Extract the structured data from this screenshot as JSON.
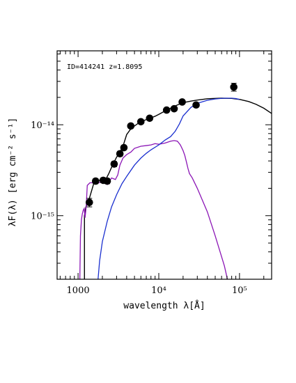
{
  "chart_data": {
    "type": "scatter",
    "annotation": "ID=414241 z=1.8095",
    "xlabel": "wavelength λ[Å]",
    "ylabel": "λF(λ) [erg cm⁻² s⁻¹]",
    "x_scale": "log",
    "y_scale": "log",
    "xlim": [
      550,
      250000
    ],
    "ylim": [
      2e-16,
      6.5e-14
    ],
    "grid": false,
    "x_ticks": [
      {
        "value": 1000,
        "label": "1000"
      },
      {
        "value": 10000,
        "label": "10⁴"
      },
      {
        "value": 100000,
        "label": "10⁵"
      }
    ],
    "y_ticks": [
      {
        "value": 1e-15,
        "label": "10⁻¹⁵"
      },
      {
        "value": 1e-14,
        "label": "10⁻¹⁴"
      }
    ],
    "series": [
      {
        "kind": "points",
        "color": "#000000",
        "x": [
          1380,
          1650,
          2050,
          2300,
          2800,
          3300,
          3700,
          4500,
          6000,
          7700,
          12500,
          15500,
          19500,
          29000,
          85000
        ],
        "y": [
          1.4e-15,
          2.4e-15,
          2.45e-15,
          2.4e-15,
          3.7e-15,
          4.8e-15,
          5.6e-15,
          9.7e-15,
          1.08e-14,
          1.18e-14,
          1.45e-14,
          1.5e-14,
          1.78e-14,
          1.65e-14,
          2.6e-14
        ],
        "yerr": [
          1.5e-16,
          1.5e-16,
          1.5e-16,
          1.5e-16,
          2.5e-16,
          3e-16,
          3e-16,
          5e-16,
          5e-16,
          5e-16,
          7e-16,
          7e-16,
          8e-16,
          8e-16,
          2.6e-15
        ]
      },
      {
        "kind": "line",
        "color": "#000000",
        "x": [
          1200,
          1200,
          1250,
          1350,
          1450,
          1550,
          1650,
          1800,
          2000,
          2200,
          2400,
          2600,
          2800,
          3000,
          3300,
          3600,
          4000,
          4500,
          5000,
          5500,
          6000,
          7000,
          8000,
          9000,
          10000,
          12000,
          14000,
          17000,
          20000,
          25000,
          30000,
          40000,
          50000,
          60000,
          80000,
          100000,
          130000,
          160000,
          200000,
          250000
        ],
        "y": [
          2e-16,
          1e-15,
          1.25e-15,
          1.45e-15,
          1.8e-15,
          2.2e-15,
          2.4e-15,
          2.45e-15,
          2.45e-15,
          2.5e-15,
          2.9e-15,
          3.4e-15,
          3.9e-15,
          4.4e-15,
          5e-15,
          5.8e-15,
          7.8e-15,
          9e-15,
          9.7e-15,
          1.03e-14,
          1.08e-14,
          1.14e-14,
          1.19e-14,
          1.24e-14,
          1.3e-14,
          1.42e-14,
          1.52e-14,
          1.65e-14,
          1.75e-14,
          1.82e-14,
          1.87e-14,
          1.93e-14,
          1.95e-14,
          1.96e-14,
          1.95e-14,
          1.9e-14,
          1.8e-14,
          1.68e-14,
          1.52e-14,
          1.33e-14
        ]
      },
      {
        "kind": "line",
        "color": "#8b15b5",
        "x": [
          1050,
          1070,
          1100,
          1130,
          1160,
          1190,
          1220,
          1260,
          1300,
          1400,
          1500,
          1600,
          1800,
          2000,
          2300,
          2600,
          2900,
          3100,
          3300,
          3600,
          4000,
          4500,
          5000,
          6000,
          7000,
          8000,
          9000,
          10000,
          12000,
          14000,
          15500,
          17000,
          18500,
          20000,
          21000,
          22000,
          23000,
          24000,
          26000,
          30000,
          40000,
          50000,
          65000,
          75000
        ],
        "y": [
          1.8e-16,
          6e-16,
          9e-16,
          1.05e-15,
          1.15e-15,
          1.2e-15,
          9.5e-16,
          1.25e-15,
          2.15e-15,
          2.3e-15,
          2.3e-15,
          2.35e-15,
          2.3e-15,
          2.35e-15,
          2.2e-15,
          2.6e-15,
          2.5e-15,
          2.8e-15,
          3.6e-15,
          4.3e-15,
          4.7e-15,
          5e-15,
          5.5e-15,
          5.8e-15,
          5.9e-15,
          6e-15,
          6.2e-15,
          6.1e-15,
          6.3e-15,
          6.6e-15,
          6.7e-15,
          6.6e-15,
          6e-15,
          5.2e-15,
          4.6e-15,
          3.9e-15,
          3.3e-15,
          2.9e-15,
          2.6e-15,
          2e-15,
          1.1e-15,
          6e-16,
          2.8e-16,
          1.6e-16
        ]
      },
      {
        "kind": "line",
        "color": "#1a2fcf",
        "x": [
          1750,
          1850,
          2000,
          2300,
          2600,
          3000,
          3500,
          4000,
          5000,
          6000,
          7000,
          8000,
          10000,
          12000,
          14000,
          16000,
          18000,
          20000,
          25000,
          30000,
          40000,
          50000,
          60000,
          70000,
          80000,
          90000,
          100000
        ],
        "y": [
          1.8e-16,
          3.2e-16,
          5.2e-16,
          8.7e-16,
          1.25e-15,
          1.7e-15,
          2.25e-15,
          2.7e-15,
          3.6e-15,
          4.3e-15,
          4.85e-15,
          5.3e-15,
          6e-15,
          6.8e-15,
          7.4e-15,
          8.5e-15,
          1.02e-14,
          1.25e-14,
          1.55e-14,
          1.72e-14,
          1.86e-14,
          1.92e-14,
          1.95e-14,
          1.96e-14,
          1.96e-14,
          1.94e-14,
          1.9e-14
        ]
      }
    ]
  }
}
